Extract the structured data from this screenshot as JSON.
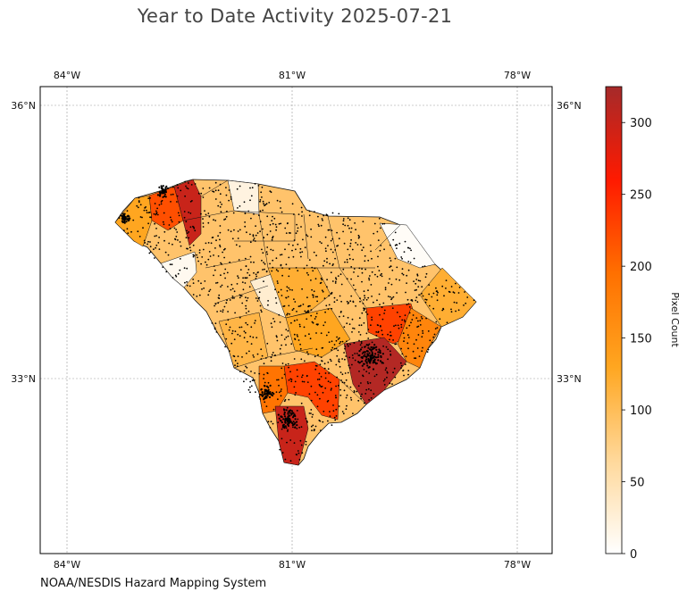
{
  "title": "Year to Date Activity 2025-07-21",
  "credit": "NOAA/NESDIS Hazard Mapping System",
  "map": {
    "lon_ticks": [
      {
        "lon": -84,
        "label": "84°W"
      },
      {
        "lon": -81,
        "label": "81°W"
      },
      {
        "lon": -78,
        "label": "78°W"
      }
    ],
    "lat_ticks": [
      {
        "lat": 36,
        "label": "36°N"
      },
      {
        "lat": 33,
        "label": "33°N"
      }
    ],
    "region": "South Carolina counties",
    "fill_scale": "white-to-orange-to-red-to-dark-red",
    "point_color": "#000000",
    "border_color": "#000000"
  },
  "colorbar": {
    "label": "Pixel Count",
    "min": 0,
    "max": 325,
    "ticks": [
      {
        "value": 0,
        "label": "0"
      },
      {
        "value": 50,
        "label": "50"
      },
      {
        "value": 100,
        "label": "100"
      },
      {
        "value": 150,
        "label": "150"
      },
      {
        "value": 200,
        "label": "200"
      },
      {
        "value": 250,
        "label": "250"
      },
      {
        "value": 300,
        "label": "300"
      }
    ],
    "colors": [
      "#ffffff",
      "#ffd89a",
      "#ffa620",
      "#ff7000",
      "#ff1a00",
      "#a52a2a"
    ]
  }
}
